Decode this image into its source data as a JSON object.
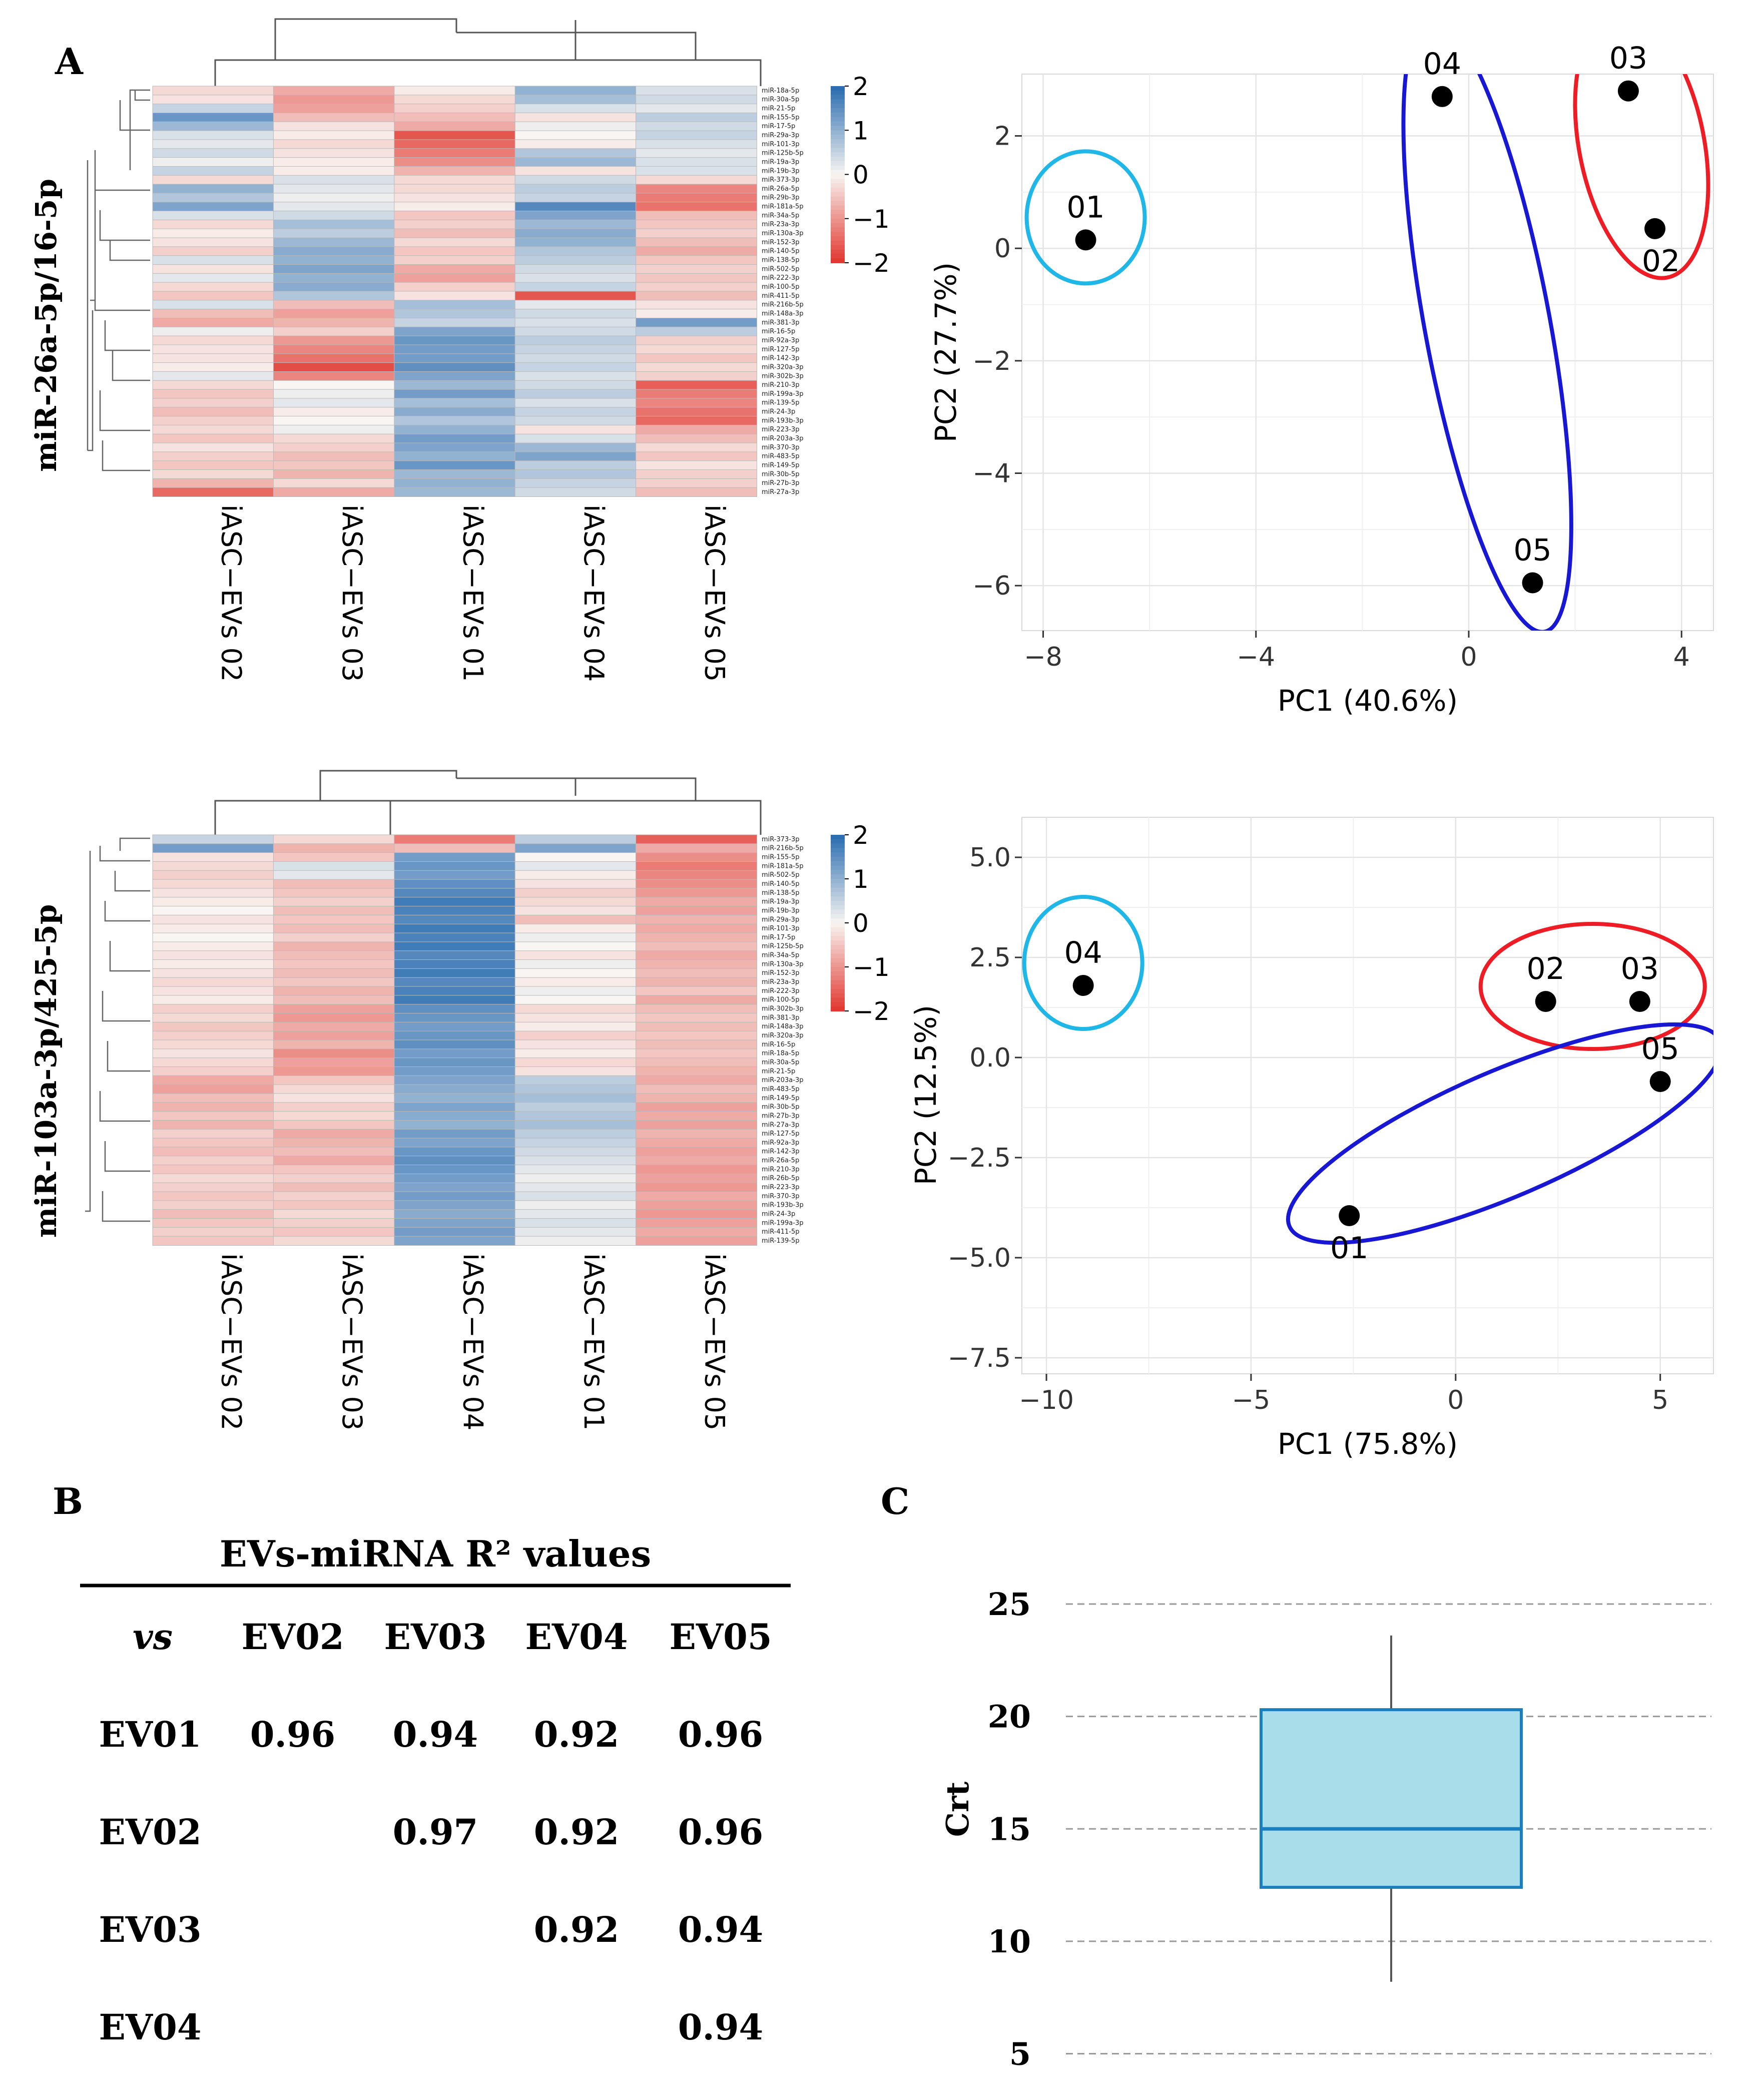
{
  "panel_labels": {
    "a": "A",
    "b": "B",
    "c": "C"
  },
  "color_scale": {
    "low": "#e23a32",
    "mid": "#f8f5f2",
    "high": "#2c6eb1"
  },
  "chart_data": [
    {
      "id": "heatmap_top",
      "type": "heatmap",
      "normalizer_label": "miR-26a-5p/16-5p",
      "columns": [
        "iASC−EVs 02",
        "iASC−EVs 03",
        "iASC−EVs 01",
        "iASC−EVs 04",
        "iASC−EVs 05"
      ],
      "rows": [
        "miR-18a-5p",
        "miR-30a-5p",
        "miR-21-5p",
        "miR-155-5p",
        "miR-17-5p",
        "miR-29a-3p",
        "miR-101-3p",
        "miR-125b-5p",
        "miR-19a-3p",
        "miR-19b-3p",
        "miR-373-3p",
        "miR-26a-5p",
        "miR-29b-3p",
        "miR-181a-5p",
        "miR-34a-5p",
        "miR-23a-3p",
        "miR-130a-3p",
        "miR-152-3p",
        "miR-140-5p",
        "miR-138-5p",
        "miR-502-5p",
        "miR-222-3p",
        "miR-100-5p",
        "miR-411-5p",
        "miR-216b-5p",
        "miR-148a-3p",
        "miR-381-3p",
        "miR-16-5p",
        "miR-92a-3p",
        "miR-127-5p",
        "miR-142-3p",
        "miR-320a-3p",
        "miR-302b-3p",
        "miR-210-3p",
        "miR-199a-3p",
        "miR-139-5p",
        "miR-24-3p",
        "miR-193b-3p",
        "miR-223-3p",
        "miR-203a-3p",
        "miR-370-3p",
        "miR-483-5p",
        "miR-149-5p",
        "miR-30b-5p",
        "miR-27b-3p",
        "miR-27a-3p"
      ],
      "scale_ticks": [
        2,
        1,
        0,
        -1,
        -2
      ],
      "values": [
        [
          -0.3,
          -0.8,
          -0.1,
          1.0,
          0.3
        ],
        [
          -0.2,
          -1.0,
          -0.3,
          0.8,
          0.4
        ],
        [
          0.5,
          -0.9,
          -0.4,
          0.3,
          0.2
        ],
        [
          1.4,
          -0.6,
          -0.6,
          -0.2,
          0.6
        ],
        [
          0.9,
          -0.2,
          -0.8,
          0.1,
          0.4
        ],
        [
          0.3,
          -0.1,
          -1.7,
          0.0,
          0.5
        ],
        [
          0.2,
          -0.3,
          -1.5,
          -0.1,
          0.3
        ],
        [
          0.4,
          -0.2,
          -1.3,
          0.7,
          0.2
        ],
        [
          0.1,
          -0.1,
          -1.1,
          0.9,
          0.3
        ],
        [
          0.5,
          -0.1,
          -0.7,
          -0.2,
          0.3
        ],
        [
          -0.3,
          0.3,
          -0.3,
          0.4,
          -0.3
        ],
        [
          1.0,
          0.2,
          -0.3,
          0.6,
          -1.2
        ],
        [
          0.7,
          0.1,
          -0.2,
          0.5,
          -1.3
        ],
        [
          1.2,
          0.2,
          -0.1,
          1.6,
          -1.4
        ],
        [
          0.3,
          0.4,
          -0.5,
          1.2,
          -0.6
        ],
        [
          -0.3,
          0.8,
          -0.4,
          0.9,
          -0.5
        ],
        [
          -0.1,
          0.6,
          -0.6,
          1.1,
          -0.4
        ],
        [
          -0.2,
          0.9,
          -0.3,
          1.0,
          -0.6
        ],
        [
          -0.4,
          1.1,
          -0.5,
          0.7,
          -0.8
        ],
        [
          0.3,
          1.0,
          -0.4,
          0.6,
          -0.5
        ],
        [
          -0.2,
          1.2,
          -0.8,
          0.4,
          -0.4
        ],
        [
          0.2,
          1.0,
          -0.9,
          0.3,
          -0.5
        ],
        [
          -0.3,
          1.1,
          -0.4,
          0.5,
          -0.4
        ],
        [
          -0.5,
          0.7,
          -0.2,
          -1.7,
          -0.6
        ],
        [
          0.3,
          -0.6,
          0.8,
          0.2,
          -0.2
        ],
        [
          -0.6,
          -0.9,
          0.7,
          0.4,
          -0.1
        ],
        [
          -0.8,
          -0.7,
          0.5,
          0.3,
          1.3
        ],
        [
          0.1,
          -0.4,
          1.2,
          0.4,
          0.6
        ],
        [
          -0.3,
          -1.0,
          1.4,
          0.6,
          -0.4
        ],
        [
          -0.2,
          -1.2,
          1.3,
          0.5,
          -0.3
        ],
        [
          -0.2,
          -1.4,
          1.3,
          0.4,
          -0.5
        ],
        [
          -0.1,
          -1.8,
          1.5,
          0.5,
          -0.3
        ],
        [
          0.2,
          -1.2,
          1.2,
          0.3,
          -0.4
        ],
        [
          -0.3,
          0.0,
          0.9,
          0.4,
          -1.6
        ],
        [
          -0.5,
          0.1,
          1.3,
          0.6,
          -1.3
        ],
        [
          -0.4,
          0.2,
          0.8,
          0.3,
          -1.2
        ],
        [
          -0.6,
          -0.1,
          1.1,
          0.5,
          -1.4
        ],
        [
          -0.4,
          0.0,
          0.7,
          0.4,
          -1.5
        ],
        [
          -0.3,
          0.1,
          1.0,
          -0.2,
          -0.8
        ],
        [
          -0.5,
          -0.3,
          1.3,
          0.3,
          -0.6
        ],
        [
          -0.2,
          -0.4,
          1.2,
          0.9,
          -0.3
        ],
        [
          -0.4,
          -0.6,
          1.0,
          1.2,
          -0.5
        ],
        [
          -0.5,
          -0.5,
          1.4,
          0.6,
          -0.2
        ],
        [
          -0.3,
          -0.7,
          0.9,
          0.7,
          -0.4
        ],
        [
          -0.7,
          -0.3,
          1.0,
          0.5,
          -0.4
        ],
        [
          -1.5,
          -0.8,
          0.9,
          0.4,
          -0.6
        ]
      ]
    },
    {
      "id": "pca_top",
      "type": "scatter",
      "xlabel": "PC1 (40.6%)",
      "ylabel": "PC2 (27.7%)",
      "xlim": [
        -8.4,
        4.6
      ],
      "ylim": [
        -6.8,
        3.1
      ],
      "xticks": [
        -8,
        -4,
        0,
        4
      ],
      "yticks": [
        2,
        0,
        -2,
        -4,
        -6
      ],
      "xtick_labels": [
        "−8",
        "−4",
        "0",
        "4"
      ],
      "ytick_labels": [
        "2",
        "0",
        "−2",
        "−4",
        "−6"
      ],
      "points": [
        {
          "label": "01",
          "x": -7.2,
          "y": 0.15
        },
        {
          "label": "02",
          "x": 3.5,
          "y": 0.35
        },
        {
          "label": "03",
          "x": 3.0,
          "y": 2.8
        },
        {
          "label": "04",
          "x": -0.5,
          "y": 2.7
        },
        {
          "label": "05",
          "x": 1.2,
          "y": -5.95
        }
      ],
      "groups": [
        {
          "members": [
            "01"
          ],
          "color": "#1fb6e8"
        },
        {
          "members": [
            "02",
            "03"
          ],
          "color": "#ee1c24"
        },
        {
          "members": [
            "04",
            "05"
          ],
          "color": "#1717d4"
        }
      ]
    },
    {
      "id": "heatmap_bottom",
      "type": "heatmap",
      "normalizer_label": "miR-103a-3p/425-5p",
      "columns": [
        "iASC−EVs 02",
        "iASC−EVs 03",
        "iASC−EVs 04",
        "iASC−EVs 01",
        "iASC−EVs 05"
      ],
      "rows": [
        "miR-373-3p",
        "miR-216b-5p",
        "miR-155-5p",
        "miR-181a-5p",
        "miR-502-5p",
        "miR-140-5p",
        "miR-138-5p",
        "miR-19a-3p",
        "miR-19b-3p",
        "miR-29a-3p",
        "miR-101-3p",
        "miR-17-5p",
        "miR-125b-5p",
        "miR-34a-5p",
        "miR-130a-3p",
        "miR-152-3p",
        "miR-23a-3p",
        "miR-222-3p",
        "miR-100-5p",
        "miR-302b-3p",
        "miR-381-3p",
        "miR-148a-3p",
        "miR-320a-3p",
        "miR-16-5p",
        "miR-18a-5p",
        "miR-30a-5p",
        "miR-21-5p",
        "miR-203a-3p",
        "miR-483-5p",
        "miR-149-5p",
        "miR-30b-5p",
        "miR-27b-3p",
        "miR-27a-3p",
        "miR-127-5p",
        "miR-92a-3p",
        "miR-142-3p",
        "miR-26a-5p",
        "miR-210-3p",
        "miR-26b-5p",
        "miR-223-3p",
        "miR-370-3p",
        "miR-193b-3p",
        "miR-24-3p",
        "miR-199a-3p",
        "miR-411-5p",
        "miR-139-5p"
      ],
      "scale_ticks": [
        2,
        1,
        0,
        -1,
        -2
      ],
      "values": [
        [
          0.5,
          -0.3,
          -1.3,
          0.6,
          -1.6
        ],
        [
          1.3,
          -0.7,
          -0.6,
          1.2,
          -0.8
        ],
        [
          -0.2,
          -0.5,
          1.3,
          0.0,
          -1.1
        ],
        [
          -0.3,
          0.3,
          1.4,
          0.2,
          -1.3
        ],
        [
          -0.4,
          0.2,
          1.3,
          -0.1,
          -1.2
        ],
        [
          -0.3,
          -0.6,
          1.5,
          -0.2,
          -1.1
        ],
        [
          -0.2,
          -0.5,
          1.6,
          -0.4,
          -1.0
        ],
        [
          -0.1,
          -0.4,
          1.8,
          -0.3,
          -0.8
        ],
        [
          0.0,
          -0.6,
          1.7,
          -0.2,
          -0.9
        ],
        [
          -0.2,
          -0.5,
          1.6,
          -0.6,
          -0.7
        ],
        [
          -0.1,
          -0.6,
          1.8,
          -0.1,
          -0.8
        ],
        [
          0.0,
          -0.4,
          1.7,
          0.1,
          -0.7
        ],
        [
          -0.1,
          -0.7,
          1.8,
          0.0,
          -0.6
        ],
        [
          -0.2,
          -0.6,
          1.6,
          -0.2,
          -0.8
        ],
        [
          -0.1,
          -0.5,
          1.7,
          0.1,
          -0.7
        ],
        [
          -0.2,
          -0.6,
          1.8,
          0.0,
          -0.6
        ],
        [
          -0.3,
          -0.5,
          1.6,
          -0.1,
          -0.7
        ],
        [
          -0.2,
          -0.7,
          1.7,
          0.1,
          -0.5
        ],
        [
          -0.1,
          -0.6,
          1.8,
          0.0,
          -0.8
        ],
        [
          -0.4,
          -0.9,
          1.5,
          -0.3,
          -0.6
        ],
        [
          -0.3,
          -1.0,
          1.4,
          -0.2,
          -0.5
        ],
        [
          -0.5,
          -0.8,
          1.3,
          -0.1,
          -0.6
        ],
        [
          -0.4,
          -0.9,
          1.4,
          -0.4,
          -0.5
        ],
        [
          -0.3,
          -0.7,
          1.5,
          -0.2,
          -0.6
        ],
        [
          -0.2,
          -1.1,
          1.3,
          -0.1,
          -0.5
        ],
        [
          -0.3,
          -0.9,
          1.4,
          -0.3,
          -0.6
        ],
        [
          -0.4,
          -1.0,
          1.3,
          -0.2,
          -0.7
        ],
        [
          -0.8,
          -0.5,
          1.2,
          0.6,
          -0.8
        ],
        [
          -0.9,
          -0.3,
          1.1,
          0.7,
          -0.6
        ],
        [
          -0.6,
          -0.2,
          1.0,
          0.8,
          -0.7
        ],
        [
          -0.7,
          -0.4,
          1.2,
          0.6,
          -0.9
        ],
        [
          -0.5,
          -0.3,
          1.1,
          0.7,
          -0.8
        ],
        [
          -0.7,
          -0.5,
          1.0,
          0.8,
          -0.9
        ],
        [
          -0.4,
          -0.8,
          1.3,
          0.6,
          -0.7
        ],
        [
          -0.5,
          -0.7,
          1.2,
          0.5,
          -0.8
        ],
        [
          -0.6,
          -0.6,
          1.4,
          0.4,
          -0.9
        ],
        [
          -0.4,
          -0.8,
          1.5,
          0.3,
          -0.8
        ],
        [
          -0.5,
          -0.5,
          1.4,
          0.2,
          -1.0
        ],
        [
          -0.3,
          -0.4,
          1.3,
          0.1,
          -0.9
        ],
        [
          -0.4,
          -0.6,
          1.2,
          0.2,
          -1.0
        ],
        [
          -0.5,
          -0.4,
          1.3,
          0.3,
          -0.8
        ],
        [
          -0.4,
          -0.5,
          1.2,
          0.1,
          -0.9
        ],
        [
          -0.6,
          -0.3,
          1.1,
          0.2,
          -1.0
        ],
        [
          -0.5,
          -0.4,
          1.2,
          0.3,
          -0.9
        ],
        [
          -0.4,
          -0.5,
          1.3,
          0.2,
          -0.8
        ],
        [
          -0.5,
          -0.3,
          1.2,
          0.1,
          -0.9
        ]
      ]
    },
    {
      "id": "pca_bottom",
      "type": "scatter",
      "xlabel": "PC1 (75.8%)",
      "ylabel": "PC2 (12.5%)",
      "xlim": [
        -10.6,
        6.3
      ],
      "ylim": [
        -7.9,
        6.0
      ],
      "xticks": [
        -10,
        -5,
        0,
        5
      ],
      "yticks": [
        5.0,
        2.5,
        0.0,
        -2.5,
        -5.0,
        -7.5
      ],
      "xtick_labels": [
        "−10",
        "−5",
        "0",
        "5"
      ],
      "ytick_labels": [
        "5.0",
        "2.5",
        "0.0",
        "−2.5",
        "−5.0",
        "−7.5"
      ],
      "points": [
        {
          "label": "01",
          "x": -2.6,
          "y": -3.95
        },
        {
          "label": "02",
          "x": 2.2,
          "y": 1.4
        },
        {
          "label": "03",
          "x": 4.5,
          "y": 1.4
        },
        {
          "label": "04",
          "x": -9.1,
          "y": 1.8
        },
        {
          "label": "05",
          "x": 5.0,
          "y": -0.6
        }
      ],
      "groups": [
        {
          "members": [
            "04"
          ],
          "color": "#1fb6e8"
        },
        {
          "members": [
            "02",
            "03"
          ],
          "color": "#ee1c24"
        },
        {
          "members": [
            "01",
            "05"
          ],
          "color": "#1717d4"
        }
      ]
    },
    {
      "id": "r2_table",
      "type": "table",
      "title": "EVs-miRNA R² values",
      "corner": "vs",
      "headers": [
        "EV02",
        "EV03",
        "EV04",
        "EV05"
      ],
      "rows": [
        {
          "label": "EV01",
          "cells": [
            "0.96",
            "0.94",
            "0.92",
            "0.96"
          ]
        },
        {
          "label": "EV02",
          "cells": [
            "",
            "0.97",
            "0.92",
            "0.96"
          ]
        },
        {
          "label": "EV03",
          "cells": [
            "",
            "",
            "0.92",
            "0.94"
          ]
        },
        {
          "label": "EV04",
          "cells": [
            "",
            "",
            "",
            "0.94"
          ]
        }
      ]
    },
    {
      "id": "crt_boxplot",
      "type": "box",
      "ylabel": "Crt",
      "ylim": [
        4.3,
        25.6
      ],
      "yticks": [
        25,
        20,
        15,
        10,
        5
      ],
      "box": {
        "min": 8.2,
        "q1": 12.4,
        "median": 15.0,
        "q3": 20.3,
        "max": 23.6
      }
    }
  ]
}
